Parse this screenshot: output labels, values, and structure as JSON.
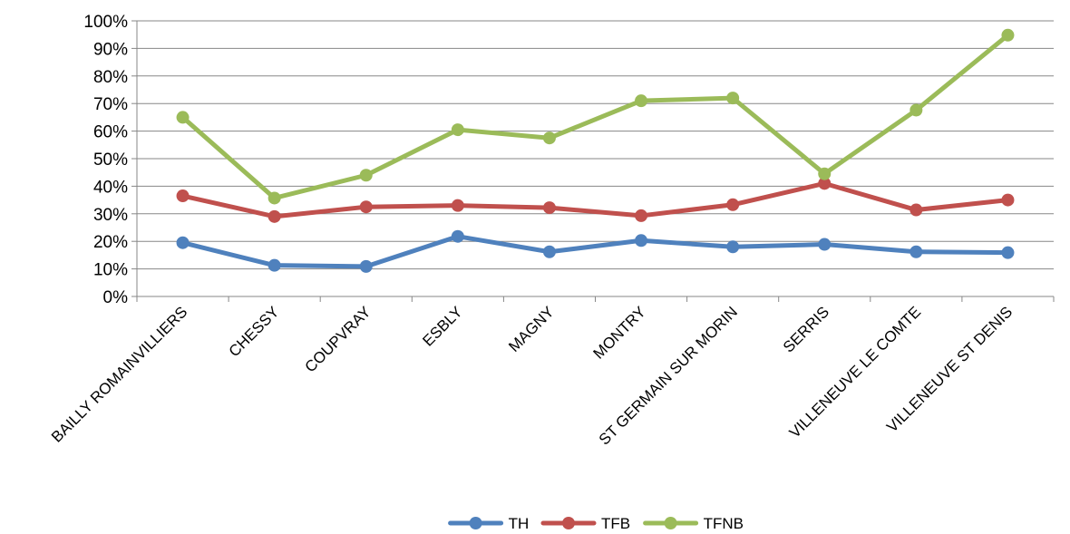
{
  "chart_data": {
    "type": "line",
    "title": "",
    "xlabel": "",
    "ylabel": "",
    "categories": [
      "BAILLY ROMAINVILLIERS",
      "CHESSY",
      "COUPVRAY",
      "ESBLY",
      "MAGNY",
      "MONTRY",
      "ST GERMAIN SUR MORIN",
      "SERRIS",
      "VILLENEUVE LE COMTE",
      "VILLENEUVE ST DENIS"
    ],
    "ylim": [
      0,
      100
    ],
    "y_ticks": [
      "0%",
      "10%",
      "20%",
      "30%",
      "40%",
      "50%",
      "60%",
      "70%",
      "80%",
      "90%",
      "100%"
    ],
    "grid": true,
    "legend_position": "bottom",
    "series": [
      {
        "name": "TH",
        "color": "#4f81bd",
        "values": [
          19.5,
          11.3,
          10.9,
          21.8,
          16.2,
          20.3,
          18.0,
          18.9,
          16.2,
          15.9
        ]
      },
      {
        "name": "TFB",
        "color": "#c0504d",
        "values": [
          36.5,
          29.0,
          32.5,
          33.0,
          32.2,
          29.3,
          33.3,
          41.0,
          31.4,
          35.0
        ]
      },
      {
        "name": "TFNB",
        "color": "#9bbb59",
        "values": [
          65.0,
          35.7,
          44.0,
          60.5,
          57.5,
          71.0,
          72.0,
          44.5,
          67.6,
          94.8
        ]
      }
    ]
  }
}
